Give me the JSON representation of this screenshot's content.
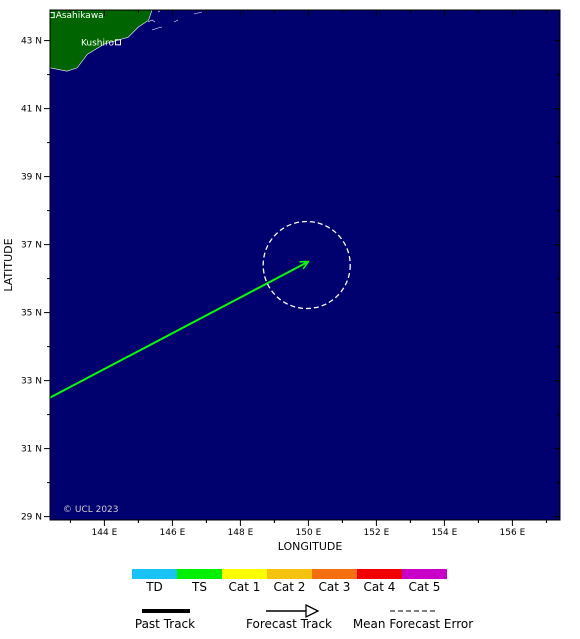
{
  "map": {
    "title": "",
    "xlabel": "LONGITUDE",
    "ylabel": "LATITUDE",
    "lon_range": [
      142.4,
      157.4
    ],
    "lat_range": [
      28.9,
      43.9
    ],
    "lon_ticks": [
      {
        "value": 144,
        "label": "144 E"
      },
      {
        "value": 146,
        "label": "146 E"
      },
      {
        "value": 148,
        "label": "148 E"
      },
      {
        "value": 150,
        "label": "150 E"
      },
      {
        "value": 152,
        "label": "152 E"
      },
      {
        "value": 154,
        "label": "154 E"
      },
      {
        "value": 156,
        "label": "156 E"
      }
    ],
    "lat_ticks": [
      {
        "value": 29,
        "label": "29 N"
      },
      {
        "value": 31,
        "label": "31 N"
      },
      {
        "value": 33,
        "label": "33 N"
      },
      {
        "value": 35,
        "label": "35 N"
      },
      {
        "value": 37,
        "label": "37 N"
      },
      {
        "value": 39,
        "label": "39 N"
      },
      {
        "value": 41,
        "label": "41 N"
      },
      {
        "value": 43,
        "label": "43 N"
      }
    ],
    "ocean_color": "#00006e",
    "land_color": "#006400",
    "cities": [
      {
        "name": "Asahikawa",
        "lon": 142.45,
        "lat": 43.75
      },
      {
        "name": "Kushiro",
        "lon": 144.4,
        "lat": 42.95
      }
    ],
    "land_polygon": [
      [
        142.4,
        43.9
      ],
      [
        145.4,
        43.9
      ],
      [
        145.3,
        43.6
      ],
      [
        145.0,
        43.4
      ],
      [
        144.7,
        43.1
      ],
      [
        144.0,
        42.9
      ],
      [
        143.5,
        42.6
      ],
      [
        143.2,
        42.2
      ],
      [
        142.9,
        42.1
      ],
      [
        142.4,
        42.2
      ]
    ],
    "forecast_track": {
      "color": "#00ff00",
      "points": [
        {
          "lon": 142.4,
          "lat": 32.5
        },
        {
          "lon": 150.0,
          "lat": 36.5
        }
      ]
    },
    "error_circle": {
      "lon": 149.95,
      "lat": 36.4,
      "radius_deg": 1.28
    },
    "copyright": "© UCL 2023"
  },
  "legend": {
    "categories": [
      {
        "label": "TD",
        "color": "#19c3f5"
      },
      {
        "label": "TS",
        "color": "#00f000"
      },
      {
        "label": "Cat 1",
        "color": "#ffff00"
      },
      {
        "label": "Cat 2",
        "color": "#f5c30f"
      },
      {
        "label": "Cat 3",
        "color": "#f56e0f"
      },
      {
        "label": "Cat 4",
        "color": "#f00000"
      },
      {
        "label": "Cat 5",
        "color": "#c800c8"
      }
    ],
    "past_track_label": "Past Track",
    "forecast_track_label": "Forecast Track",
    "mean_error_label": "Mean Forecast Error"
  }
}
